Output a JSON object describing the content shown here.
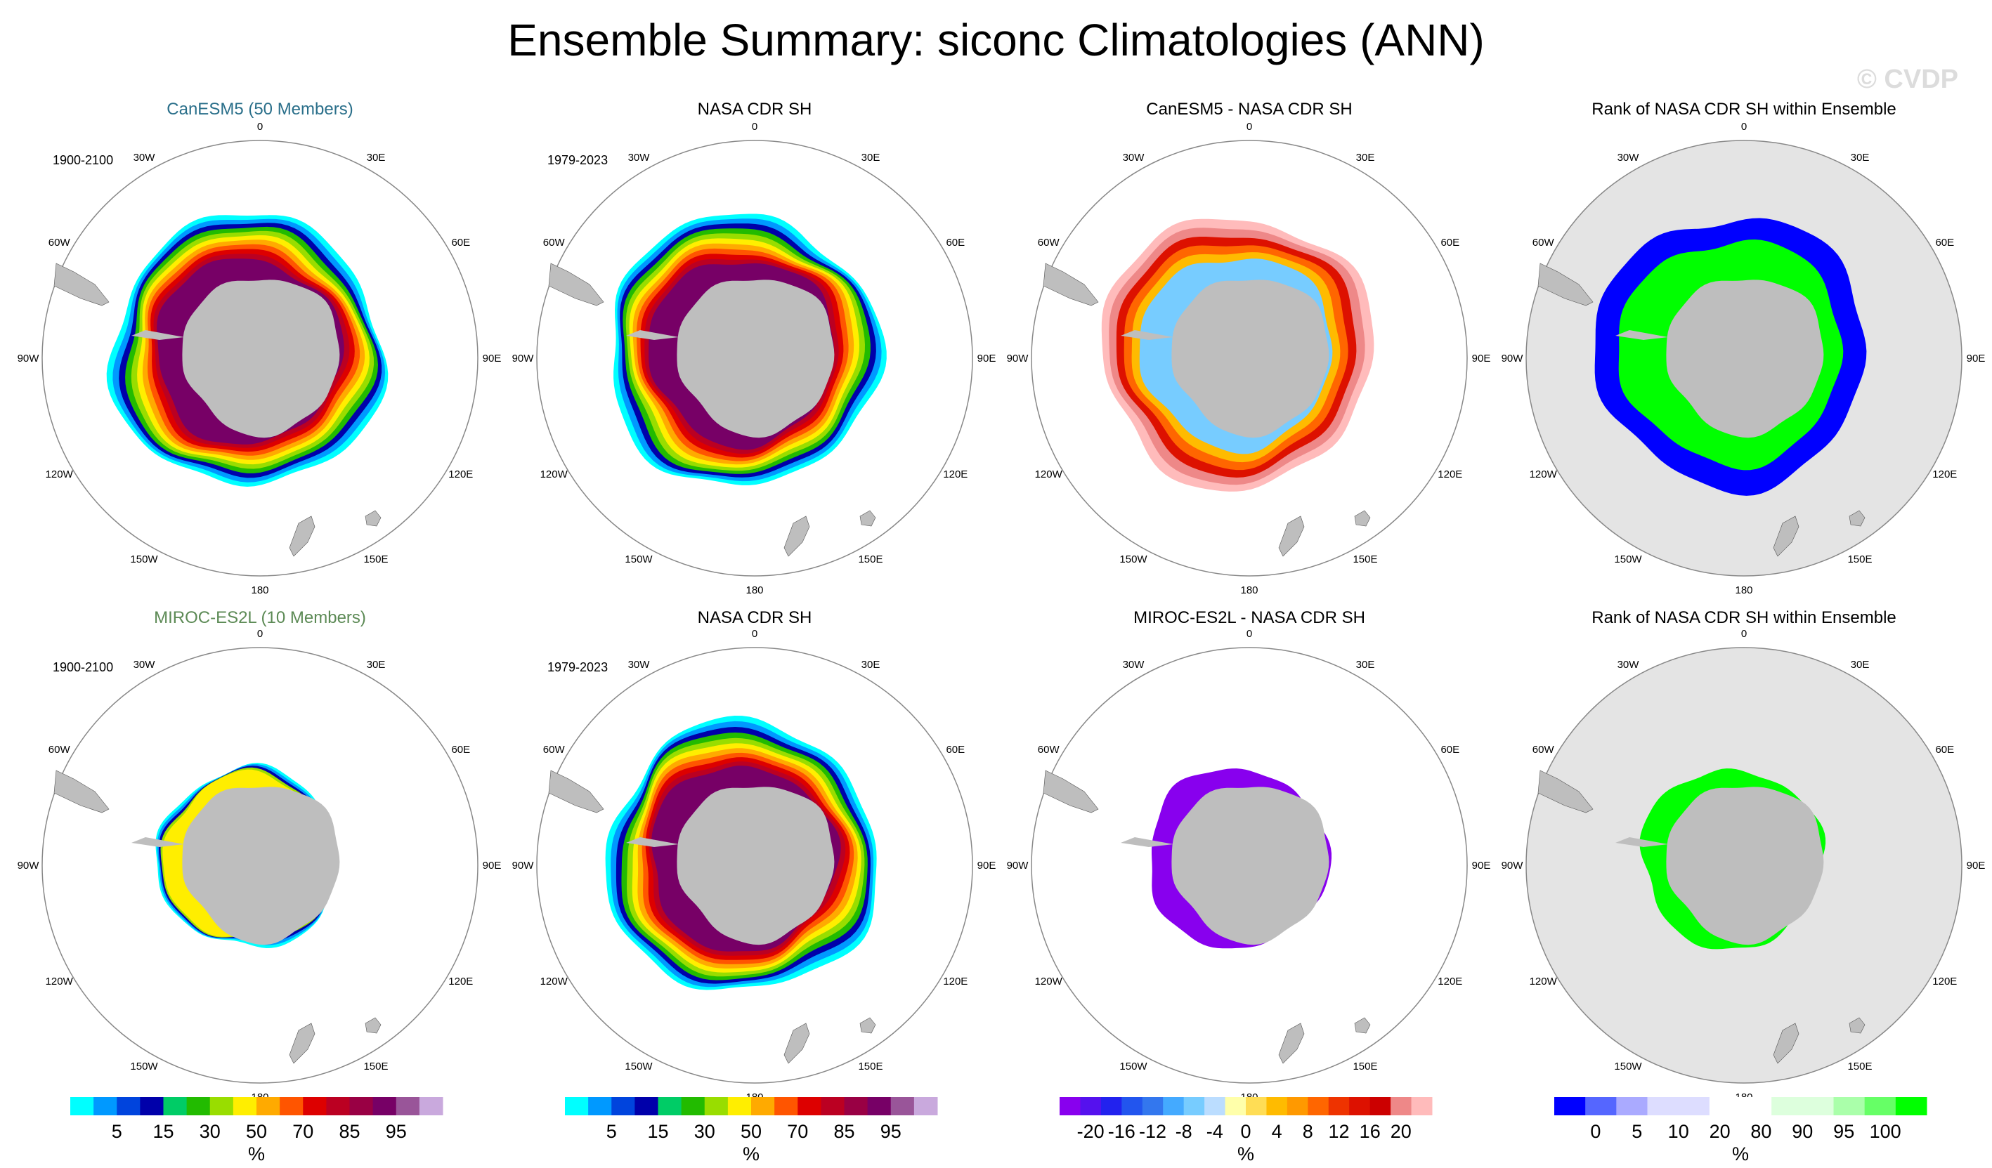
{
  "title": "Ensemble Summary: siconc Climatologies (ANN)",
  "watermark": "© CVDP",
  "lon_labels": [
    "0",
    "30E",
    "60E",
    "90E",
    "120E",
    "150E",
    "180",
    "150W",
    "120W",
    "90W",
    "60W",
    "30W"
  ],
  "colors": {
    "land": "#bebebe",
    "rank_background": "#e4e4e4",
    "circle": "#888888",
    "model1_title": "#2a6f8a",
    "model2_title": "#5c8a55"
  },
  "chart_data": [
    {
      "type": "map",
      "title": "CanESM5 (50 Members)",
      "period": "1900-2100",
      "field": "concentration",
      "extent": 1.0
    },
    {
      "type": "map",
      "title": "NASA CDR SH",
      "period": "1979-2023",
      "field": "concentration",
      "extent": 1.0
    },
    {
      "type": "map",
      "title": "CanESM5 - NASA CDR SH",
      "period": "",
      "field": "difference",
      "extent": 1.0
    },
    {
      "type": "map",
      "title": "Rank of NASA CDR SH within Ensemble",
      "period": "",
      "field": "rank",
      "extent": 1.0
    },
    {
      "type": "map",
      "title": "MIROC-ES2L (10 Members)",
      "period": "1900-2100",
      "field": "concentration_low",
      "extent": 0.62
    },
    {
      "type": "map",
      "title": "NASA CDR SH",
      "period": "1979-2023",
      "field": "concentration",
      "extent": 1.0
    },
    {
      "type": "map",
      "title": "MIROC-ES2L - NASA CDR SH",
      "period": "",
      "field": "difference_low",
      "extent": 0.62
    },
    {
      "type": "map",
      "title": "Rank of NASA CDR SH within Ensemble",
      "period": "",
      "field": "rank_low",
      "extent": 0.62
    }
  ],
  "colorbars": [
    {
      "unit": "%",
      "labels": [
        "5",
        "15",
        "30",
        "50",
        "70",
        "85",
        "95"
      ],
      "colors": [
        "#00ffff",
        "#0099ff",
        "#0044dd",
        "#0000aa",
        "#00cc66",
        "#22bb00",
        "#99dd00",
        "#ffee00",
        "#ffaa00",
        "#ff5500",
        "#dd0000",
        "#bb0022",
        "#990044",
        "#770066",
        "#995599",
        "#c9a9dd"
      ]
    },
    {
      "unit": "%",
      "labels": [
        "5",
        "15",
        "30",
        "50",
        "70",
        "85",
        "95"
      ],
      "colors": [
        "#00ffff",
        "#0099ff",
        "#0044dd",
        "#0000aa",
        "#00cc66",
        "#22bb00",
        "#99dd00",
        "#ffee00",
        "#ffaa00",
        "#ff5500",
        "#dd0000",
        "#bb0022",
        "#990044",
        "#770066",
        "#995599",
        "#c9a9dd"
      ]
    },
    {
      "unit": "%",
      "labels": [
        "-20",
        "-16",
        "-12",
        "-8",
        "-4",
        "0",
        "4",
        "8",
        "12",
        "16",
        "20"
      ],
      "colors": [
        "#8800ee",
        "#5511ee",
        "#2222ee",
        "#2255ee",
        "#3377ee",
        "#44aaff",
        "#77ccff",
        "#bbddff",
        "#ffffaa",
        "#ffdd55",
        "#ffbb00",
        "#ff9900",
        "#ff6600",
        "#ee3300",
        "#dd1100",
        "#cc0000",
        "#ee8888",
        "#ffbbbb"
      ]
    },
    {
      "unit": "%",
      "labels": [
        "0",
        "5",
        "10",
        "20",
        "80",
        "90",
        "95",
        "100"
      ],
      "colors": [
        "#0000ff",
        "#5566ff",
        "#aaaaff",
        "#ddddff",
        "#ddddff",
        "#ffffff",
        "#ffffff",
        "#ddffdd",
        "#ddffdd",
        "#aaffaa",
        "#66ff66",
        "#00ff00"
      ]
    }
  ]
}
